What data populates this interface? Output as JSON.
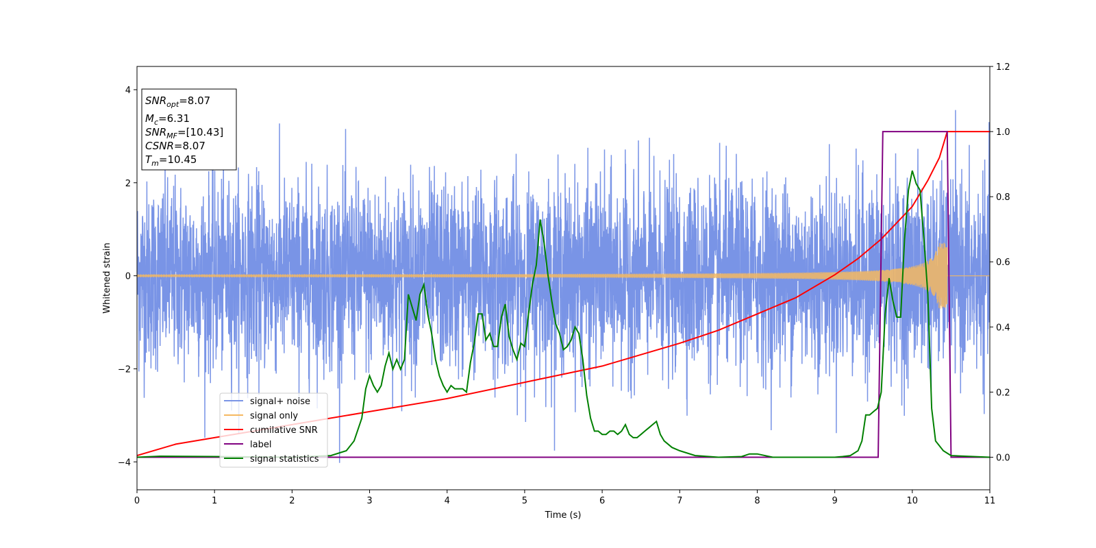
{
  "chart_data": {
    "type": "line",
    "xlabel": "Time (s)",
    "ylabel": "Whitened strain",
    "xlim": [
      0,
      11
    ],
    "ylim": [
      -4.6,
      4.5
    ],
    "y2lim": [
      -0.1,
      1.2
    ],
    "xticks": [
      "0",
      "1",
      "2",
      "3",
      "4",
      "5",
      "6",
      "7",
      "8",
      "9",
      "10",
      "11"
    ],
    "yticks": [
      "−4",
      "−2",
      "0",
      "2",
      "4"
    ],
    "y2ticks": [
      "0.0",
      "0.2",
      "0.4",
      "0.6",
      "0.8",
      "1.0",
      "1.2"
    ],
    "grid": false,
    "legend_position": "lower-left",
    "colors": {
      "signal_noise": "#7994e6",
      "signal_only": "#f5b860",
      "cumulative_snr": "#ff0000",
      "label": "#800080",
      "signal_statistics": "#008000"
    },
    "info_box": {
      "snr_opt": "8.07",
      "mc": "6.31",
      "snr_mf": "[10.43]",
      "csnr": "8.07",
      "tm": "10.45"
    },
    "series": [
      {
        "name": "signal+ noise",
        "axis": "left",
        "description_values": "white noise, amplitude roughly ±2.5 with spikes to ±4.1",
        "noise_std": 1.0,
        "x_range": [
          0,
          11
        ]
      },
      {
        "name": "signal only",
        "axis": "left",
        "chirp_end": 10.45,
        "amplitude_start": 0.02,
        "amplitude_end": 0.72,
        "x_range": [
          0,
          11
        ]
      },
      {
        "name": "cumilative SNR",
        "axis": "right",
        "x": [
          0,
          0.5,
          1,
          2,
          3,
          4,
          5,
          6,
          7,
          7.5,
          8,
          8.5,
          9,
          9.3,
          9.6,
          9.8,
          10.0,
          10.2,
          10.35,
          10.45,
          11
        ],
        "values": [
          0.005,
          0.04,
          0.06,
          0.1,
          0.14,
          0.18,
          0.23,
          0.28,
          0.35,
          0.39,
          0.44,
          0.49,
          0.56,
          0.61,
          0.67,
          0.72,
          0.77,
          0.85,
          0.92,
          1.0,
          1.0
        ]
      },
      {
        "name": "label",
        "axis": "right",
        "x": [
          0,
          9.56,
          9.62,
          10.45,
          10.5,
          11
        ],
        "values": [
          0,
          0,
          1,
          1,
          0,
          0
        ]
      },
      {
        "name": "signal statistics",
        "axis": "right",
        "x": [
          0,
          0.3,
          1,
          2,
          2.5,
          2.7,
          2.8,
          2.9,
          2.95,
          3.0,
          3.05,
          3.1,
          3.15,
          3.2,
          3.25,
          3.3,
          3.35,
          3.4,
          3.45,
          3.5,
          3.55,
          3.6,
          3.65,
          3.7,
          3.75,
          3.8,
          3.85,
          3.9,
          3.95,
          4.0,
          4.05,
          4.1,
          4.2,
          4.25,
          4.3,
          4.35,
          4.4,
          4.45,
          4.5,
          4.55,
          4.6,
          4.65,
          4.7,
          4.75,
          4.8,
          4.85,
          4.9,
          4.95,
          5.0,
          5.05,
          5.1,
          5.15,
          5.2,
          5.25,
          5.3,
          5.35,
          5.4,
          5.45,
          5.5,
          5.55,
          5.6,
          5.65,
          5.7,
          5.75,
          5.8,
          5.85,
          5.9,
          5.95,
          6.0,
          6.05,
          6.1,
          6.15,
          6.2,
          6.25,
          6.3,
          6.35,
          6.4,
          6.45,
          6.5,
          6.55,
          6.6,
          6.65,
          6.7,
          6.75,
          6.8,
          6.9,
          7.0,
          7.2,
          7.5,
          7.8,
          7.9,
          8.0,
          8.2,
          8.5,
          8.8,
          9.0,
          9.1,
          9.2,
          9.3,
          9.35,
          9.4,
          9.45,
          9.5,
          9.55,
          9.6,
          9.65,
          9.7,
          9.75,
          9.8,
          9.85,
          9.9,
          9.95,
          10.0,
          10.05,
          10.1,
          10.15,
          10.2,
          10.25,
          10.3,
          10.4,
          10.5,
          11
        ],
        "values": [
          0.0,
          0.003,
          0.002,
          0.0,
          0.005,
          0.02,
          0.05,
          0.12,
          0.21,
          0.25,
          0.22,
          0.2,
          0.22,
          0.28,
          0.32,
          0.27,
          0.3,
          0.27,
          0.3,
          0.5,
          0.46,
          0.42,
          0.5,
          0.53,
          0.44,
          0.38,
          0.3,
          0.25,
          0.22,
          0.2,
          0.22,
          0.21,
          0.21,
          0.2,
          0.29,
          0.35,
          0.44,
          0.44,
          0.36,
          0.38,
          0.34,
          0.34,
          0.43,
          0.47,
          0.37,
          0.33,
          0.3,
          0.35,
          0.34,
          0.44,
          0.53,
          0.59,
          0.73,
          0.66,
          0.56,
          0.48,
          0.41,
          0.38,
          0.33,
          0.34,
          0.36,
          0.4,
          0.38,
          0.3,
          0.19,
          0.12,
          0.08,
          0.08,
          0.07,
          0.07,
          0.08,
          0.08,
          0.07,
          0.08,
          0.1,
          0.07,
          0.06,
          0.06,
          0.07,
          0.08,
          0.09,
          0.1,
          0.11,
          0.07,
          0.05,
          0.03,
          0.02,
          0.005,
          0.0,
          0.002,
          0.01,
          0.01,
          0.0,
          0.0,
          0.0,
          0.0,
          0.002,
          0.005,
          0.02,
          0.05,
          0.13,
          0.13,
          0.14,
          0.15,
          0.2,
          0.44,
          0.55,
          0.48,
          0.43,
          0.43,
          0.67,
          0.82,
          0.88,
          0.84,
          0.82,
          0.67,
          0.5,
          0.15,
          0.05,
          0.02,
          0.005,
          0.0
        ]
      }
    ]
  }
}
